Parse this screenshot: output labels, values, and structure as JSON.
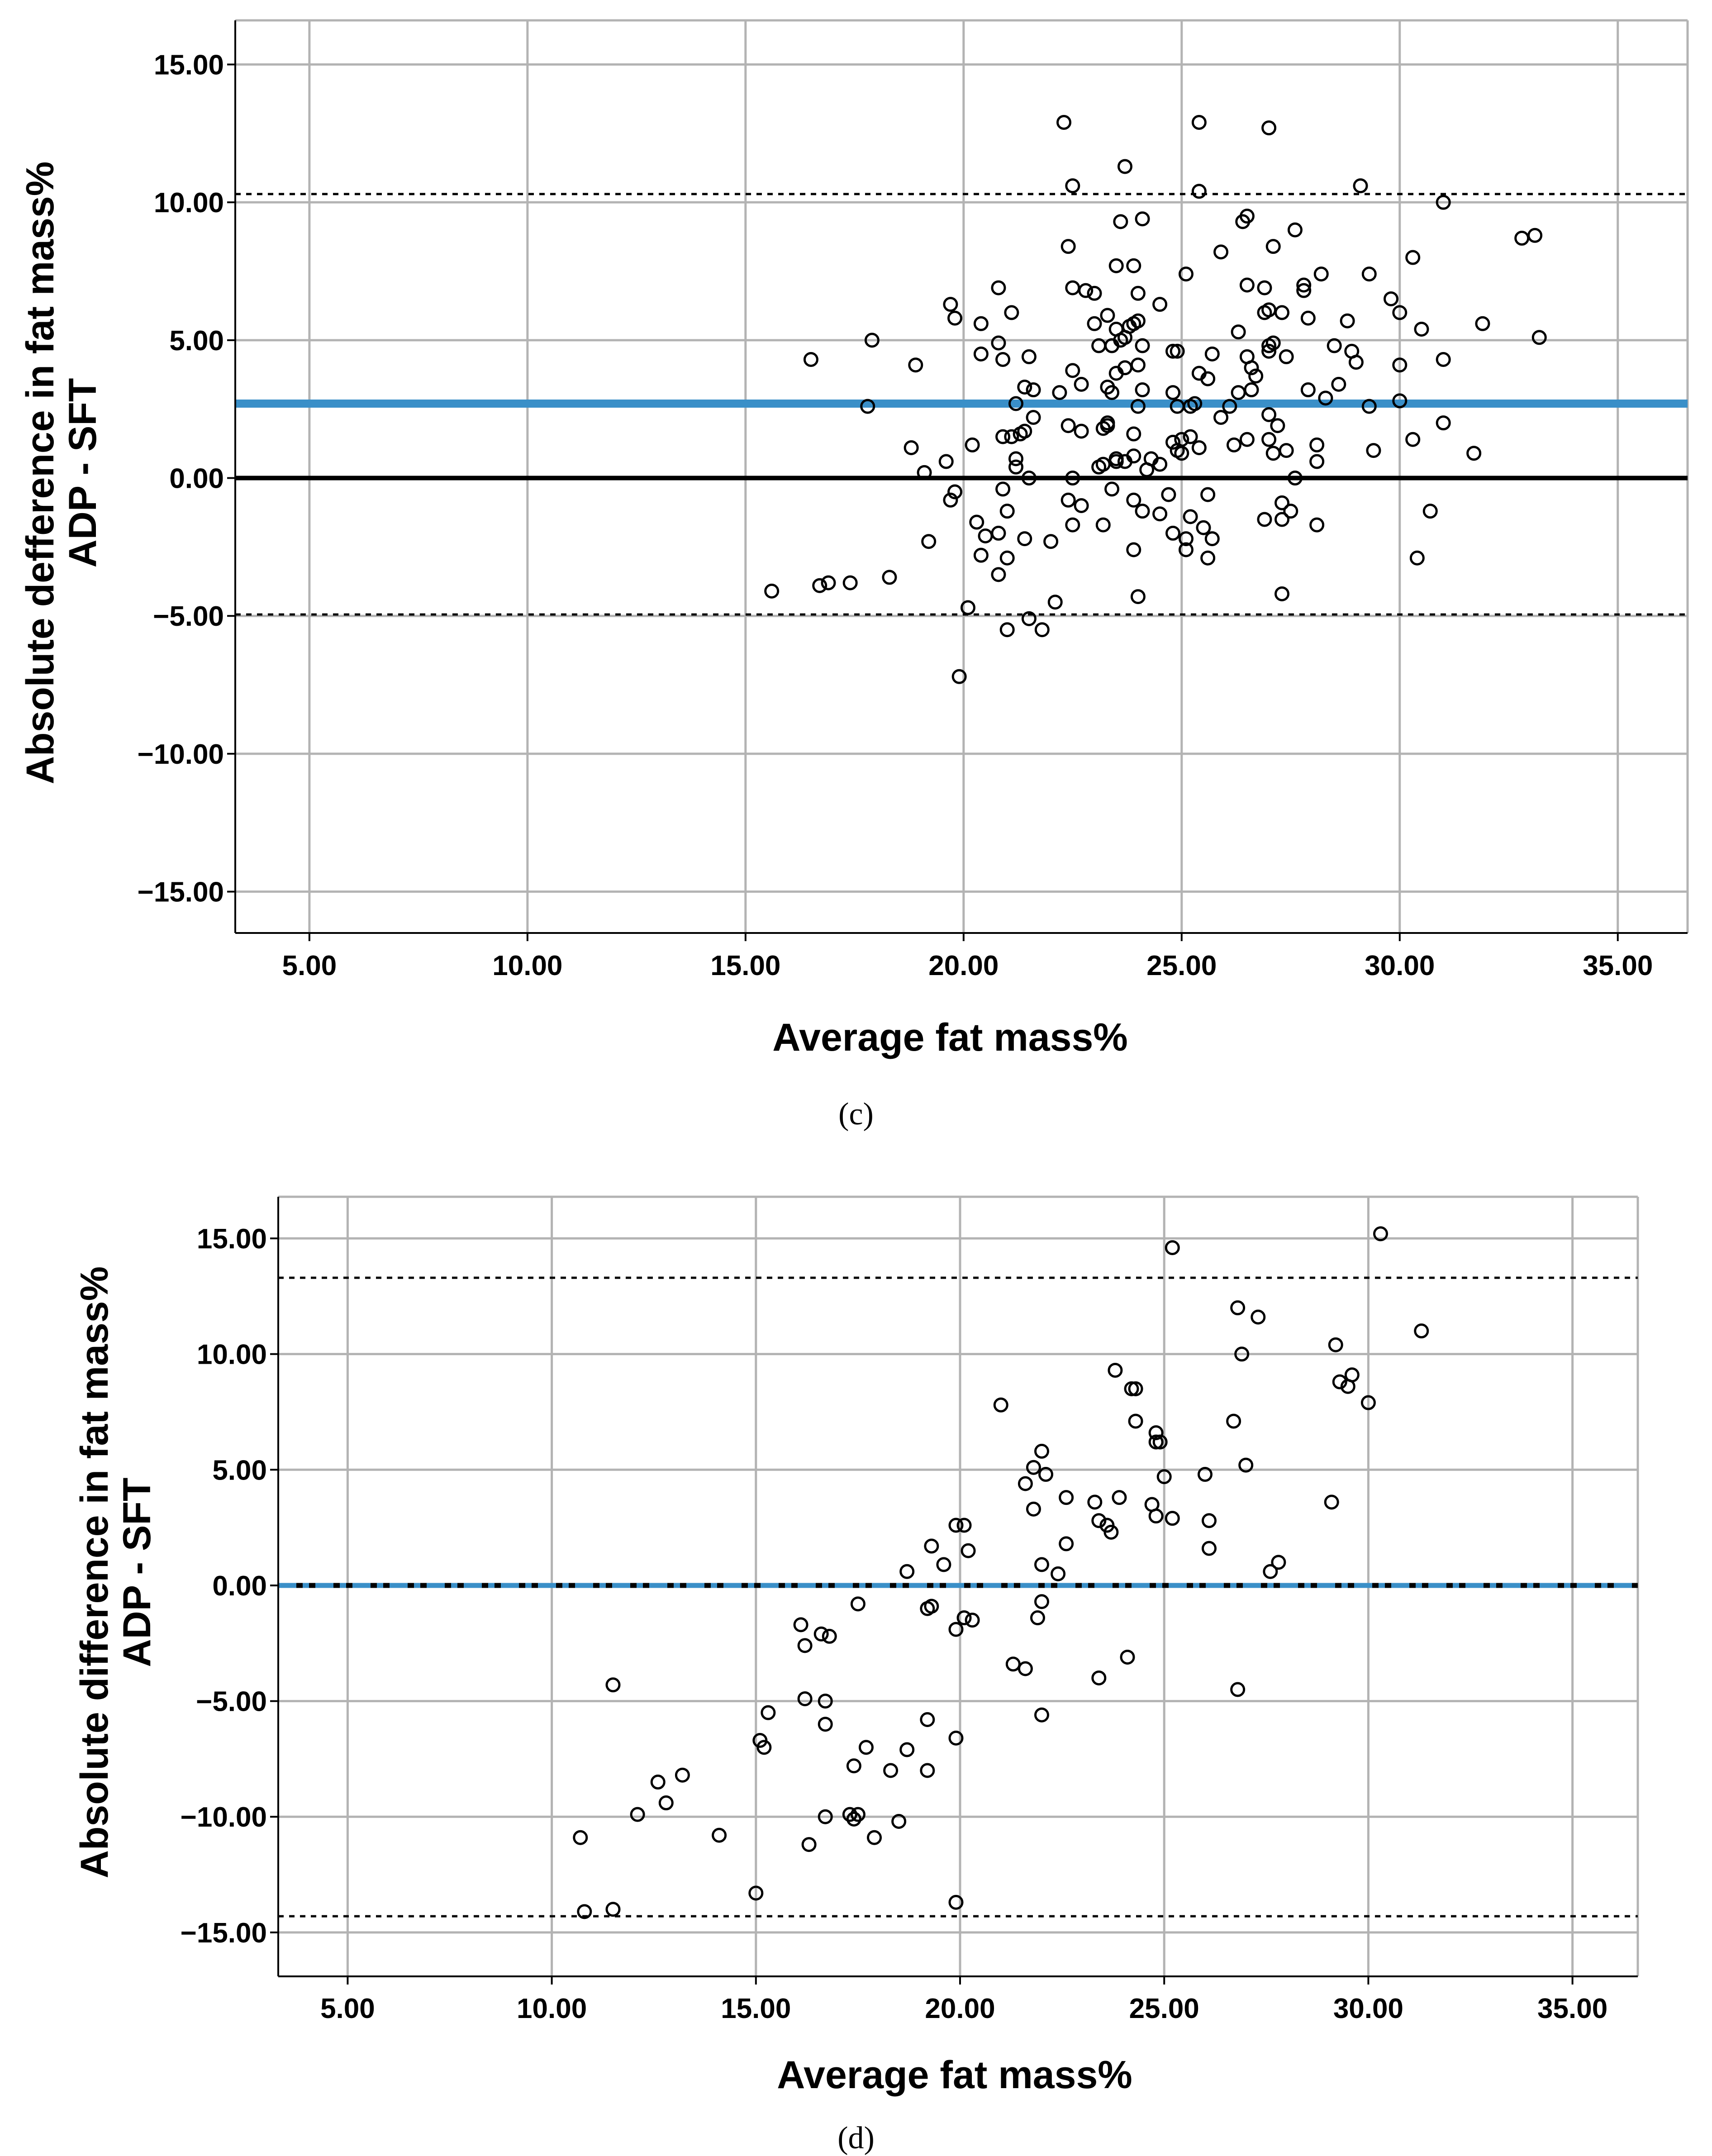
{
  "charts": {
    "c": {
      "caption": "(c)",
      "ylabel_line1": "Absolute defference in fat mass%",
      "ylabel_line2": "ADP - SFT",
      "xlabel": "Average fat mass%"
    },
    "d": {
      "caption": "(d)",
      "ylabel_line1": "Absolute difference in fat mass%",
      "ylabel_line2": "ADP - SFT",
      "xlabel": "Average fat mass%"
    }
  },
  "colors": {
    "mean_line_c": "#3a8fc8",
    "mean_line_d": "#3a8fc8",
    "zero_line": "#000000",
    "grid": "#b3b3b3"
  },
  "chart_data": [
    {
      "id": "c",
      "type": "scatter",
      "title": "",
      "caption": "(c)",
      "xlabel": "Average fat mass%",
      "ylabel": "Absolute defference in fat mass% ADP - SFT",
      "xlim": [
        3.3,
        36.6
      ],
      "ylim": [
        -16.5,
        16.6
      ],
      "xticks": [
        5,
        10,
        15,
        20,
        25,
        30,
        35
      ],
      "yticks": [
        -15,
        -10,
        -5,
        0,
        5,
        10,
        15
      ],
      "xtick_labels": [
        "5.00",
        "10.00",
        "15.00",
        "20.00",
        "25.00",
        "30.00",
        "35.00"
      ],
      "ytick_labels": [
        "−15.00",
        "−10.00",
        "−5.00",
        "0.00",
        "5.00",
        "10.00",
        "15.00"
      ],
      "grid": true,
      "mean_bias": 2.7,
      "upper_loa": 10.3,
      "lower_loa": -4.95,
      "points": [
        [
          22.3,
          12.9
        ],
        [
          25.4,
          12.9
        ],
        [
          27.0,
          12.7
        ],
        [
          23.7,
          11.3
        ],
        [
          22.5,
          10.6
        ],
        [
          25.4,
          10.4
        ],
        [
          29.1,
          10.6
        ],
        [
          31.0,
          10.0
        ],
        [
          23.6,
          9.3
        ],
        [
          24.1,
          9.4
        ],
        [
          26.4,
          9.3
        ],
        [
          26.5,
          9.5
        ],
        [
          27.6,
          9.0
        ],
        [
          32.8,
          8.7
        ],
        [
          33.1,
          8.8
        ],
        [
          22.4,
          8.4
        ],
        [
          25.9,
          8.2
        ],
        [
          27.1,
          8.4
        ],
        [
          30.3,
          8.0
        ],
        [
          23.5,
          7.7
        ],
        [
          23.9,
          7.7
        ],
        [
          25.1,
          7.4
        ],
        [
          27.8,
          7.0
        ],
        [
          28.2,
          7.4
        ],
        [
          29.3,
          7.4
        ],
        [
          20.8,
          6.9
        ],
        [
          22.5,
          6.9
        ],
        [
          22.8,
          6.8
        ],
        [
          23.0,
          6.7
        ],
        [
          24.0,
          6.7
        ],
        [
          24.5,
          6.3
        ],
        [
          26.5,
          7.0
        ],
        [
          26.9,
          6.9
        ],
        [
          27.8,
          6.8
        ],
        [
          29.8,
          6.5
        ],
        [
          19.7,
          6.3
        ],
        [
          21.1,
          6.0
        ],
        [
          23.3,
          5.9
        ],
        [
          26.9,
          6.0
        ],
        [
          27.0,
          6.1
        ],
        [
          27.3,
          6.0
        ],
        [
          19.8,
          5.8
        ],
        [
          20.4,
          5.6
        ],
        [
          23.0,
          5.6
        ],
        [
          23.5,
          5.4
        ],
        [
          23.8,
          5.5
        ],
        [
          23.9,
          5.6
        ],
        [
          24.0,
          5.7
        ],
        [
          26.3,
          5.3
        ],
        [
          27.9,
          5.8
        ],
        [
          28.8,
          5.7
        ],
        [
          30.0,
          6.0
        ],
        [
          30.5,
          5.4
        ],
        [
          31.9,
          5.6
        ],
        [
          33.2,
          5.1
        ],
        [
          17.9,
          5.0
        ],
        [
          20.8,
          4.9
        ],
        [
          21.5,
          4.4
        ],
        [
          23.1,
          4.8
        ],
        [
          23.4,
          4.8
        ],
        [
          23.6,
          5.0
        ],
        [
          23.7,
          5.1
        ],
        [
          24.1,
          4.8
        ],
        [
          24.8,
          4.6
        ],
        [
          24.9,
          4.6
        ],
        [
          25.7,
          4.5
        ],
        [
          26.5,
          4.4
        ],
        [
          27.0,
          4.8
        ],
        [
          27.1,
          4.9
        ],
        [
          27.4,
          4.4
        ],
        [
          28.5,
          4.8
        ],
        [
          28.9,
          4.6
        ],
        [
          16.5,
          4.3
        ],
        [
          18.9,
          4.1
        ],
        [
          20.4,
          4.5
        ],
        [
          20.9,
          4.3
        ],
        [
          22.5,
          3.9
        ],
        [
          23.5,
          3.8
        ],
        [
          23.7,
          4.0
        ],
        [
          24.0,
          4.1
        ],
        [
          25.4,
          3.8
        ],
        [
          25.6,
          3.6
        ],
        [
          26.6,
          4.0
        ],
        [
          26.7,
          3.7
        ],
        [
          27.0,
          4.6
        ],
        [
          28.6,
          3.4
        ],
        [
          29.0,
          4.2
        ],
        [
          30.0,
          4.1
        ],
        [
          31.0,
          4.3
        ],
        [
          21.4,
          3.3
        ],
        [
          21.6,
          3.2
        ],
        [
          22.2,
          3.1
        ],
        [
          22.7,
          3.4
        ],
        [
          23.3,
          3.3
        ],
        [
          23.4,
          3.1
        ],
        [
          24.1,
          3.2
        ],
        [
          24.8,
          3.1
        ],
        [
          26.3,
          3.1
        ],
        [
          26.6,
          3.2
        ],
        [
          27.9,
          3.2
        ],
        [
          28.3,
          2.9
        ],
        [
          17.8,
          2.6
        ],
        [
          21.2,
          2.7
        ],
        [
          21.6,
          2.2
        ],
        [
          23.3,
          2.0
        ],
        [
          24.0,
          2.6
        ],
        [
          24.9,
          2.6
        ],
        [
          25.2,
          2.6
        ],
        [
          25.3,
          2.7
        ],
        [
          25.9,
          2.2
        ],
        [
          26.1,
          2.6
        ],
        [
          27.0,
          2.3
        ],
        [
          29.3,
          2.6
        ],
        [
          30.0,
          2.8
        ],
        [
          22.4,
          1.9
        ],
        [
          23.2,
          1.8
        ],
        [
          20.9,
          1.5
        ],
        [
          21.1,
          1.5
        ],
        [
          21.3,
          1.6
        ],
        [
          21.4,
          1.7
        ],
        [
          22.7,
          1.7
        ],
        [
          23.3,
          1.9
        ],
        [
          23.9,
          1.6
        ],
        [
          24.8,
          1.3
        ],
        [
          25.0,
          1.4
        ],
        [
          25.2,
          1.5
        ],
        [
          25.4,
          1.1
        ],
        [
          26.2,
          1.2
        ],
        [
          26.5,
          1.4
        ],
        [
          27.0,
          1.4
        ],
        [
          27.2,
          1.9
        ],
        [
          28.1,
          1.2
        ],
        [
          30.3,
          1.4
        ],
        [
          31.0,
          2.0
        ],
        [
          18.8,
          1.1
        ],
        [
          20.2,
          1.2
        ],
        [
          21.2,
          0.7
        ],
        [
          23.2,
          0.5
        ],
        [
          23.5,
          0.7
        ],
        [
          23.7,
          0.6
        ],
        [
          23.9,
          0.8
        ],
        [
          24.3,
          0.7
        ],
        [
          24.9,
          1.0
        ],
        [
          25.0,
          0.9
        ],
        [
          27.1,
          0.9
        ],
        [
          27.4,
          1.0
        ],
        [
          28.1,
          0.6
        ],
        [
          29.4,
          1.0
        ],
        [
          31.7,
          0.9
        ],
        [
          19.6,
          0.6
        ],
        [
          19.1,
          0.2
        ],
        [
          21.2,
          0.4
        ],
        [
          23.1,
          0.4
        ],
        [
          23.5,
          0.6
        ],
        [
          24.2,
          0.3
        ],
        [
          24.5,
          0.5
        ],
        [
          21.5,
          0.0
        ],
        [
          22.5,
          0.0
        ],
        [
          27.6,
          0.0
        ],
        [
          19.8,
          -0.5
        ],
        [
          19.7,
          -0.8
        ],
        [
          20.9,
          -0.4
        ],
        [
          22.4,
          -0.8
        ],
        [
          23.4,
          -0.4
        ],
        [
          23.9,
          -0.8
        ],
        [
          24.7,
          -0.6
        ],
        [
          25.6,
          -0.6
        ],
        [
          27.3,
          -0.9
        ],
        [
          20.3,
          -1.6
        ],
        [
          21.0,
          -1.2
        ],
        [
          22.7,
          -1.0
        ],
        [
          24.1,
          -1.2
        ],
        [
          24.5,
          -1.3
        ],
        [
          26.9,
          -1.5
        ],
        [
          27.3,
          -1.5
        ],
        [
          27.5,
          -1.2
        ],
        [
          28.1,
          -1.7
        ],
        [
          30.7,
          -1.2
        ],
        [
          19.2,
          -2.3
        ],
        [
          20.5,
          -2.1
        ],
        [
          20.8,
          -2.0
        ],
        [
          21.4,
          -2.2
        ],
        [
          22.5,
          -1.7
        ],
        [
          23.2,
          -1.7
        ],
        [
          24.8,
          -2.0
        ],
        [
          25.1,
          -2.2
        ],
        [
          25.2,
          -1.4
        ],
        [
          25.7,
          -2.2
        ],
        [
          25.5,
          -1.8
        ],
        [
          20.4,
          -2.8
        ],
        [
          20.8,
          -3.5
        ],
        [
          21.0,
          -2.9
        ],
        [
          22.0,
          -2.3
        ],
        [
          23.9,
          -2.6
        ],
        [
          25.1,
          -2.6
        ],
        [
          25.6,
          -2.9
        ],
        [
          30.4,
          -2.9
        ],
        [
          15.6,
          -4.1
        ],
        [
          16.7,
          -3.9
        ],
        [
          16.9,
          -3.8
        ],
        [
          17.4,
          -3.8
        ],
        [
          18.3,
          -3.6
        ],
        [
          24.0,
          -4.3
        ],
        [
          27.3,
          -4.2
        ],
        [
          20.1,
          -4.7
        ],
        [
          21.0,
          -5.5
        ],
        [
          21.5,
          -5.1
        ],
        [
          21.8,
          -5.5
        ],
        [
          22.1,
          -4.5
        ],
        [
          19.9,
          -7.2
        ]
      ]
    },
    {
      "id": "d",
      "type": "scatter",
      "title": "",
      "caption": "(d)",
      "xlabel": "Average fat mass%",
      "ylabel": "Absolute difference in fat mass% ADP - SFT",
      "xlim": [
        3.3,
        36.6
      ],
      "ylim": [
        -16.9,
        16.8
      ],
      "xticks": [
        5,
        10,
        15,
        20,
        25,
        30,
        35
      ],
      "yticks": [
        -15,
        -10,
        -5,
        0,
        5,
        10,
        15
      ],
      "xtick_labels": [
        "5.00",
        "10.00",
        "15.00",
        "20.00",
        "25.00",
        "30.00",
        "35.00"
      ],
      "ytick_labels": [
        "−15.00",
        "−10.00",
        "−5.00",
        "0.00",
        "5.00",
        "10.00",
        "15.00"
      ],
      "grid": true,
      "mean_bias": 0.0,
      "upper_loa": 13.3,
      "lower_loa": -14.3,
      "points": [
        [
          30.3,
          15.2
        ],
        [
          25.2,
          14.6
        ],
        [
          26.8,
          12.0
        ],
        [
          27.3,
          11.6
        ],
        [
          31.3,
          11.0
        ],
        [
          29.2,
          10.4
        ],
        [
          26.9,
          10.0
        ],
        [
          29.3,
          8.8
        ],
        [
          29.6,
          9.1
        ],
        [
          29.5,
          8.6
        ],
        [
          23.8,
          9.3
        ],
        [
          24.2,
          8.5
        ],
        [
          24.3,
          8.5
        ],
        [
          30.0,
          7.9
        ],
        [
          21.0,
          7.8
        ],
        [
          24.3,
          7.1
        ],
        [
          26.7,
          7.1
        ],
        [
          24.8,
          6.6
        ],
        [
          24.8,
          6.2
        ],
        [
          24.9,
          6.2
        ],
        [
          22.0,
          5.8
        ],
        [
          21.8,
          5.1
        ],
        [
          22.1,
          4.8
        ],
        [
          21.6,
          4.4
        ],
        [
          25.0,
          4.7
        ],
        [
          26.0,
          4.8
        ],
        [
          27.0,
          5.2
        ],
        [
          22.6,
          3.8
        ],
        [
          23.3,
          3.6
        ],
        [
          23.9,
          3.8
        ],
        [
          24.7,
          3.5
        ],
        [
          29.1,
          3.6
        ],
        [
          21.8,
          3.3
        ],
        [
          23.4,
          2.8
        ],
        [
          23.6,
          2.6
        ],
        [
          23.7,
          2.3
        ],
        [
          24.8,
          3.0
        ],
        [
          25.2,
          2.9
        ],
        [
          26.1,
          2.8
        ],
        [
          19.9,
          2.6
        ],
        [
          20.1,
          2.6
        ],
        [
          22.6,
          1.8
        ],
        [
          19.3,
          1.7
        ],
        [
          20.2,
          1.5
        ],
        [
          26.1,
          1.6
        ],
        [
          19.6,
          0.9
        ],
        [
          22.0,
          0.9
        ],
        [
          22.4,
          0.5
        ],
        [
          18.7,
          0.6
        ],
        [
          27.6,
          0.6
        ],
        [
          27.8,
          1.0
        ],
        [
          17.5,
          -0.8
        ],
        [
          19.2,
          -1.0
        ],
        [
          19.3,
          -0.9
        ],
        [
          22.0,
          -0.7
        ],
        [
          16.1,
          -1.7
        ],
        [
          16.2,
          -2.6
        ],
        [
          16.6,
          -2.1
        ],
        [
          16.8,
          -2.2
        ],
        [
          19.9,
          -1.9
        ],
        [
          20.1,
          -1.4
        ],
        [
          20.3,
          -1.5
        ],
        [
          21.9,
          -1.4
        ],
        [
          21.3,
          -3.4
        ],
        [
          21.6,
          -3.6
        ],
        [
          24.1,
          -3.1
        ],
        [
          23.4,
          -4.0
        ],
        [
          26.8,
          -4.5
        ],
        [
          22.0,
          -5.6
        ],
        [
          11.5,
          -4.3
        ],
        [
          15.3,
          -5.5
        ],
        [
          15.1,
          -6.7
        ],
        [
          15.2,
          -7.0
        ],
        [
          16.2,
          -4.9
        ],
        [
          16.7,
          -5.0
        ],
        [
          16.7,
          -6.0
        ],
        [
          17.4,
          -7.8
        ],
        [
          17.7,
          -7.0
        ],
        [
          18.3,
          -8.0
        ],
        [
          18.7,
          -7.1
        ],
        [
          19.2,
          -5.8
        ],
        [
          19.2,
          -8.0
        ],
        [
          19.9,
          -6.6
        ],
        [
          12.6,
          -8.5
        ],
        [
          12.8,
          -9.4
        ],
        [
          13.2,
          -8.2
        ],
        [
          12.1,
          -9.9
        ],
        [
          10.7,
          -10.9
        ],
        [
          14.1,
          -10.8
        ],
        [
          16.3,
          -11.2
        ],
        [
          16.7,
          -10.0
        ],
        [
          17.3,
          -9.9
        ],
        [
          17.4,
          -10.1
        ],
        [
          17.5,
          -9.9
        ],
        [
          17.9,
          -10.9
        ],
        [
          18.5,
          -10.2
        ],
        [
          15.0,
          -13.3
        ],
        [
          19.9,
          -13.7
        ],
        [
          10.8,
          -14.1
        ],
        [
          11.5,
          -14.0
        ]
      ]
    }
  ]
}
